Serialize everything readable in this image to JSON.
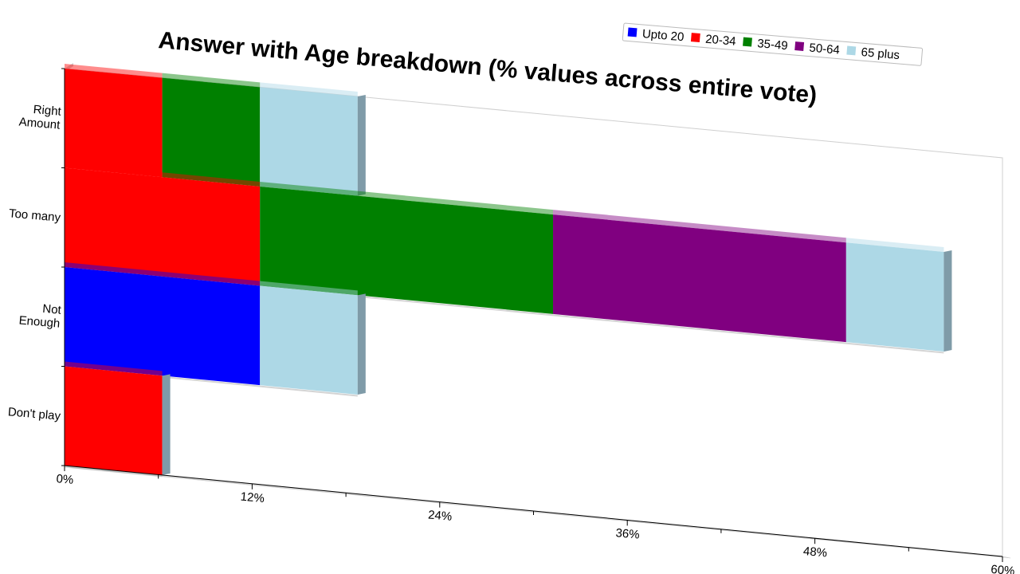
{
  "chart_data": {
    "type": "bar",
    "orientation": "horizontal",
    "stacked": true,
    "title": "Answer with Age breakdown (% values across entire vote)",
    "categories": [
      "Right\nAmount",
      "Too many",
      "Not\nEnough",
      "Don't play"
    ],
    "series": [
      {
        "name": "Upto 20",
        "color": "#0000ff",
        "values": [
          0,
          0,
          12.5,
          0
        ]
      },
      {
        "name": "20-34",
        "color": "#ff0000",
        "values": [
          6.25,
          12.5,
          0,
          6.25
        ]
      },
      {
        "name": "35-49",
        "color": "#008000",
        "values": [
          6.25,
          18.75,
          0,
          0
        ]
      },
      {
        "name": "50-64",
        "color": "#800080",
        "values": [
          0,
          18.75,
          0,
          0
        ]
      },
      {
        "name": "65 plus",
        "color": "#add8e6",
        "values": [
          6.25,
          6.25,
          6.25,
          0
        ]
      }
    ],
    "xlim": [
      0,
      60
    ],
    "xticks": [
      "0%",
      "12%",
      "24%",
      "36%",
      "48%",
      "60%"
    ],
    "legend": "top-right",
    "grid": false
  }
}
